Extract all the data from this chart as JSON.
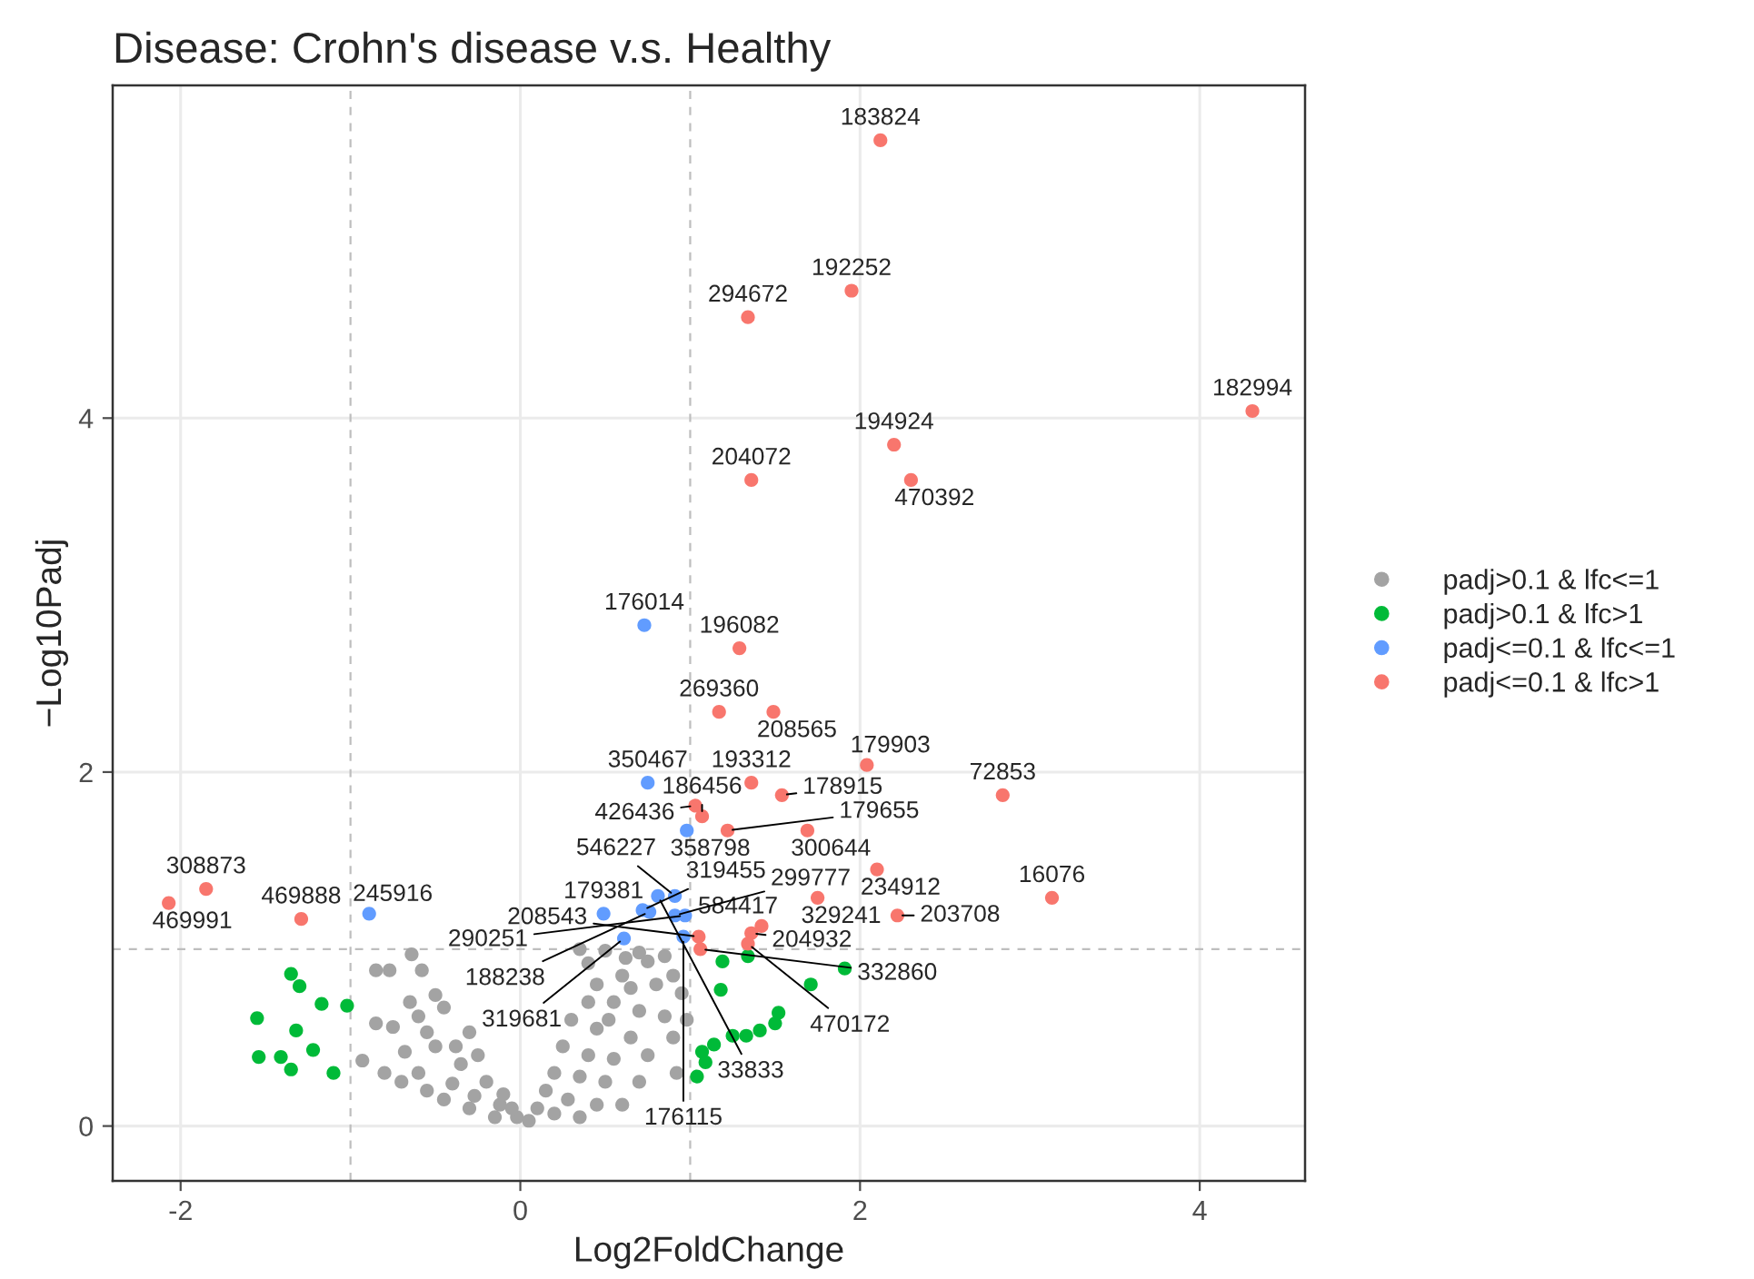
{
  "chart_data": {
    "type": "scatter",
    "title": "Disease: Crohn's disease v.s. Healthy",
    "xlabel": "Log2FoldChange",
    "ylabel": "−Log10Padj",
    "xlim": [
      -2.4,
      4.62
    ],
    "ylim": [
      -0.31,
      5.88
    ],
    "xticks": [
      -2,
      0,
      2,
      4
    ],
    "yticks": [
      0,
      2,
      4
    ],
    "grid": true,
    "legend": "right",
    "marker": "circle",
    "ref_lines": [
      {
        "axis": "x",
        "value": -1,
        "color": "#bebebe",
        "line_style": "dashed"
      },
      {
        "axis": "x",
        "value": 1,
        "color": "#bebebe",
        "line_style": "dashed"
      },
      {
        "axis": "y",
        "value": 1,
        "color": "#bebebe",
        "line_style": "dashed"
      }
    ],
    "series": [
      {
        "name": "padj>0.1 & lfc<=1",
        "color": "#a3a3a3",
        "x": [
          -0.64,
          -0.85,
          -0.77,
          -0.58,
          -0.85,
          -0.75,
          -0.93,
          -0.68,
          -0.5,
          -0.45,
          -0.3,
          -0.55,
          -0.6,
          -0.4,
          -0.27,
          -0.12,
          -0.02,
          -0.7,
          -0.8,
          -0.5,
          -0.35,
          -0.2,
          -0.15,
          -0.3,
          -0.45,
          -0.1,
          -0.6,
          -0.38,
          -0.25,
          -0.65,
          -0.55,
          -0.05,
          0.35,
          0.5,
          0.62,
          0.7,
          0.75,
          0.85,
          0.9,
          0.6,
          0.45,
          0.8,
          0.95,
          0.4,
          0.55,
          0.7,
          0.85,
          0.3,
          0.45,
          0.65,
          0.9,
          0.25,
          0.4,
          0.55,
          0.75,
          0.2,
          0.35,
          0.5,
          0.7,
          0.15,
          0.28,
          0.45,
          0.1,
          0.2,
          0.05,
          0.35,
          0.6,
          0.92,
          0.98,
          0.4,
          0.52,
          0.65
        ],
        "values": [
          0.97,
          0.88,
          0.88,
          0.88,
          0.58,
          0.56,
          0.37,
          0.42,
          0.74,
          0.67,
          0.53,
          0.53,
          0.3,
          0.24,
          0.17,
          0.12,
          0.05,
          0.25,
          0.3,
          0.45,
          0.35,
          0.25,
          0.05,
          0.1,
          0.15,
          0.18,
          0.62,
          0.45,
          0.4,
          0.7,
          0.2,
          0.1,
          1.0,
          0.99,
          0.95,
          0.98,
          0.93,
          0.96,
          0.85,
          0.85,
          0.8,
          0.8,
          0.75,
          0.7,
          0.7,
          0.65,
          0.62,
          0.6,
          0.55,
          0.5,
          0.5,
          0.45,
          0.4,
          0.38,
          0.4,
          0.3,
          0.28,
          0.25,
          0.25,
          0.2,
          0.15,
          0.12,
          0.1,
          0.07,
          0.03,
          0.05,
          0.12,
          0.3,
          0.6,
          0.92,
          0.6,
          0.78
        ]
      },
      {
        "name": "padj>0.1 & lfc>1",
        "color": "#00ba38",
        "x": [
          -1.35,
          -1.3,
          -1.17,
          -1.02,
          -1.55,
          -1.32,
          -1.22,
          -1.54,
          -1.41,
          -1.35,
          -1.1,
          1.19,
          1.34,
          1.91,
          1.71,
          1.18,
          1.25,
          1.33,
          1.41,
          1.5,
          1.52,
          1.14,
          1.07,
          1.04,
          1.09
        ],
        "values": [
          0.86,
          0.79,
          0.69,
          0.68,
          0.61,
          0.54,
          0.43,
          0.39,
          0.39,
          0.32,
          0.3,
          0.93,
          0.96,
          0.89,
          0.8,
          0.77,
          0.51,
          0.51,
          0.54,
          0.58,
          0.64,
          0.46,
          0.42,
          0.28,
          0.36
        ]
      },
      {
        "name": "padj<=0.1 & lfc<=1",
        "color": "#619cff",
        "x": [
          0.73,
          0.75,
          0.98,
          -0.89,
          0.49,
          0.72,
          0.76,
          0.81,
          0.91,
          0.91,
          0.97,
          0.61,
          0.96
        ],
        "values": [
          2.83,
          1.94,
          1.67,
          1.2,
          1.2,
          1.22,
          1.21,
          1.3,
          1.3,
          1.19,
          1.19,
          1.06,
          1.07
        ]
      },
      {
        "name": "padj<=0.1 & lfc>1",
        "color": "#f8766d",
        "x": [
          2.12,
          1.95,
          1.34,
          4.31,
          2.2,
          1.36,
          2.3,
          1.29,
          1.17,
          1.49,
          2.04,
          1.36,
          2.84,
          1.54,
          1.07,
          1.03,
          1.22,
          1.69,
          2.1,
          1.75,
          3.13,
          2.22,
          1.42,
          1.36,
          1.34,
          1.05,
          1.06,
          -2.07,
          -1.85,
          -1.29
        ],
        "values": [
          5.57,
          4.72,
          4.57,
          4.04,
          3.85,
          3.65,
          3.65,
          2.7,
          2.34,
          2.34,
          2.04,
          1.94,
          1.87,
          1.87,
          1.75,
          1.81,
          1.67,
          1.67,
          1.45,
          1.29,
          1.29,
          1.19,
          1.13,
          1.09,
          1.03,
          1.07,
          1.0,
          1.26,
          1.34,
          1.17
        ]
      }
    ],
    "annotations": [
      {
        "text": "183824",
        "x": 2.12,
        "y": 5.57
      },
      {
        "text": "192252",
        "x": 1.95,
        "y": 4.72
      },
      {
        "text": "294672",
        "x": 1.34,
        "y": 4.57
      },
      {
        "text": "182994",
        "x": 4.31,
        "y": 4.04
      },
      {
        "text": "194924",
        "x": 2.2,
        "y": 3.85
      },
      {
        "text": "204072",
        "x": 1.36,
        "y": 3.65
      },
      {
        "text": "470392",
        "x": 2.3,
        "y": 3.65
      },
      {
        "text": "176014",
        "x": 0.73,
        "y": 2.83
      },
      {
        "text": "196082",
        "x": 1.29,
        "y": 2.7
      },
      {
        "text": "269360",
        "x": 1.17,
        "y": 2.34
      },
      {
        "text": "208565",
        "x": 1.49,
        "y": 2.34
      },
      {
        "text": "179903",
        "x": 2.04,
        "y": 2.04
      },
      {
        "text": "193312",
        "x": 1.36,
        "y": 1.94
      },
      {
        "text": "72853",
        "x": 2.84,
        "y": 1.87
      },
      {
        "text": "178915",
        "x": 1.54,
        "y": 1.87
      },
      {
        "text": "350467",
        "x": 0.75,
        "y": 1.94
      },
      {
        "text": "186456",
        "x": 1.07,
        "y": 1.75
      },
      {
        "text": "426436",
        "x": 1.03,
        "y": 1.81
      },
      {
        "text": "358798",
        "x": 0.98,
        "y": 1.67
      },
      {
        "text": "179655",
        "x": 1.22,
        "y": 1.67
      },
      {
        "text": "300644",
        "x": 1.69,
        "y": 1.67
      },
      {
        "text": "234912",
        "x": 2.1,
        "y": 1.45
      },
      {
        "text": "329241",
        "x": 1.75,
        "y": 1.29
      },
      {
        "text": "16076",
        "x": 3.13,
        "y": 1.29
      },
      {
        "text": "203708",
        "x": 2.22,
        "y": 1.19
      },
      {
        "text": "584417",
        "x": 1.42,
        "y": 1.13
      },
      {
        "text": "204932",
        "x": 1.36,
        "y": 1.09
      },
      {
        "text": "470172",
        "x": 1.34,
        "y": 1.03
      },
      {
        "text": "208543",
        "x": 1.05,
        "y": 1.07
      },
      {
        "text": "332860",
        "x": 1.06,
        "y": 1.0
      },
      {
        "text": "469991",
        "x": -2.07,
        "y": 1.26
      },
      {
        "text": "308873",
        "x": -1.85,
        "y": 1.34
      },
      {
        "text": "469888",
        "x": -1.29,
        "y": 1.17
      },
      {
        "text": "245916",
        "x": -0.89,
        "y": 1.2
      },
      {
        "text": "179381",
        "x": 0.49,
        "y": 1.2
      },
      {
        "text": "319455",
        "x": 0.72,
        "y": 1.22
      },
      {
        "text": "188238",
        "x": 0.76,
        "y": 1.21
      },
      {
        "text": "33833",
        "x": 0.81,
        "y": 1.3
      },
      {
        "text": "546227",
        "x": 0.91,
        "y": 1.3
      },
      {
        "text": "299777",
        "x": 0.91,
        "y": 1.19
      },
      {
        "text": "290251",
        "x": 0.97,
        "y": 1.19
      },
      {
        "text": "319681",
        "x": 0.61,
        "y": 1.06
      },
      {
        "text": "176115",
        "x": 0.96,
        "y": 1.07
      }
    ]
  }
}
